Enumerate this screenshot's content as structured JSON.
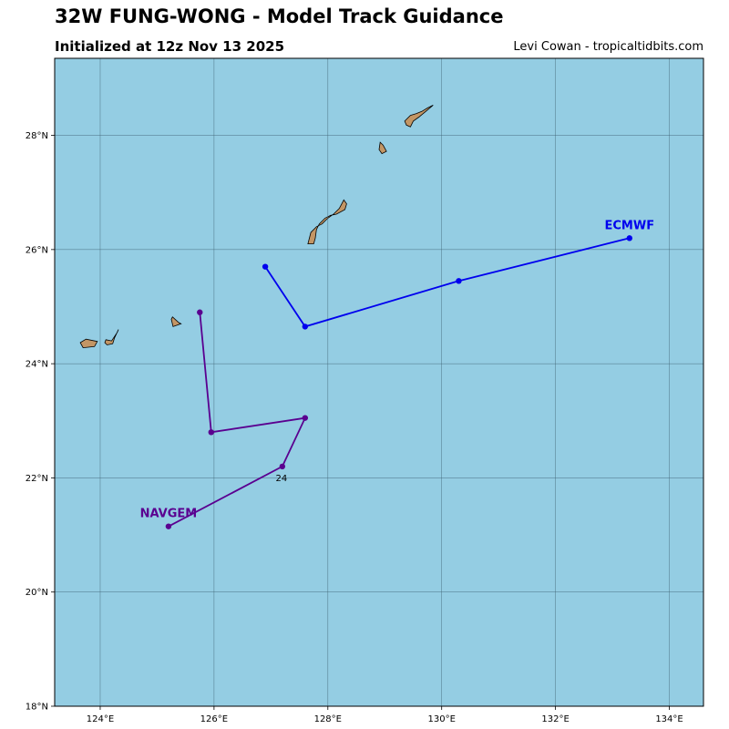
{
  "header": {
    "title": "32W FUNG-WONG - Model Track Guidance",
    "subtitle": "Initialized at 12z Nov 13 2025",
    "credit": "Levi Cowan - tropicaltidbits.com"
  },
  "colors": {
    "ocean": "#94cde3",
    "land": "#c39665",
    "grid": "#3f6272",
    "ecmwf": "#0000ee",
    "navgem": "#5a0090"
  },
  "chart_data": {
    "type": "map",
    "xlim": [
      123.2,
      134.6
    ],
    "ylim": [
      18.0,
      29.35
    ],
    "x_ticks": [
      124,
      126,
      128,
      130,
      132,
      134
    ],
    "x_tick_labels": [
      "124°E",
      "126°E",
      "128°E",
      "130°E",
      "132°E",
      "134°E"
    ],
    "y_ticks": [
      18,
      20,
      22,
      24,
      26,
      28
    ],
    "y_tick_labels": [
      "18°N",
      "20°N",
      "22°N",
      "24°N",
      "26°N",
      "28°N"
    ],
    "grid": true,
    "tracks": [
      {
        "name": "ECMWF",
        "color": "#0000ee",
        "points": [
          [
            126.9,
            25.7
          ],
          [
            127.6,
            24.65
          ],
          [
            130.3,
            25.45
          ],
          [
            133.3,
            26.2
          ]
        ],
        "label_at": "end"
      },
      {
        "name": "NAVGEM",
        "color": "#5a0090",
        "points": [
          [
            125.75,
            24.9
          ],
          [
            125.95,
            22.8
          ],
          [
            127.6,
            23.05
          ],
          [
            127.2,
            22.2
          ],
          [
            125.2,
            21.15
          ]
        ],
        "label_at": "end"
      }
    ],
    "annotations": [
      {
        "text": "24",
        "lon": 127.2,
        "lat": 22.2
      }
    ],
    "islands": [
      [
        [
          123.65,
          24.37
        ],
        [
          123.75,
          24.43
        ],
        [
          123.95,
          24.39
        ],
        [
          123.9,
          24.3
        ],
        [
          123.7,
          24.28
        ]
      ],
      [
        [
          124.1,
          24.42
        ],
        [
          124.2,
          24.4
        ],
        [
          124.3,
          24.55
        ],
        [
          124.32,
          24.6
        ],
        [
          124.25,
          24.45
        ],
        [
          124.22,
          24.35
        ],
        [
          124.12,
          24.33
        ],
        [
          124.08,
          24.37
        ]
      ],
      [
        [
          125.25,
          24.78
        ],
        [
          125.28,
          24.65
        ],
        [
          125.42,
          24.7
        ],
        [
          125.38,
          24.72
        ],
        [
          125.27,
          24.82
        ]
      ],
      [
        [
          127.65,
          26.1
        ],
        [
          127.7,
          26.3
        ],
        [
          127.8,
          26.4
        ],
        [
          127.9,
          26.45
        ],
        [
          128.0,
          26.55
        ],
        [
          128.1,
          26.62
        ],
        [
          128.2,
          26.72
        ],
        [
          128.28,
          26.87
        ],
        [
          128.33,
          26.8
        ],
        [
          128.3,
          26.7
        ],
        [
          128.15,
          26.62
        ],
        [
          128.05,
          26.6
        ],
        [
          127.95,
          26.55
        ],
        [
          127.85,
          26.45
        ],
        [
          127.8,
          26.35
        ],
        [
          127.78,
          26.2
        ],
        [
          127.75,
          26.1
        ]
      ],
      [
        [
          128.92,
          27.88
        ],
        [
          128.97,
          27.83
        ],
        [
          129.03,
          27.72
        ],
        [
          128.95,
          27.68
        ],
        [
          128.9,
          27.75
        ]
      ],
      [
        [
          129.35,
          28.25
        ],
        [
          129.45,
          28.35
        ],
        [
          129.55,
          28.38
        ],
        [
          129.65,
          28.42
        ],
        [
          129.75,
          28.48
        ],
        [
          129.85,
          28.53
        ],
        [
          129.72,
          28.42
        ],
        [
          129.6,
          28.32
        ],
        [
          129.5,
          28.25
        ],
        [
          129.45,
          28.15
        ],
        [
          129.38,
          28.18
        ]
      ]
    ]
  }
}
